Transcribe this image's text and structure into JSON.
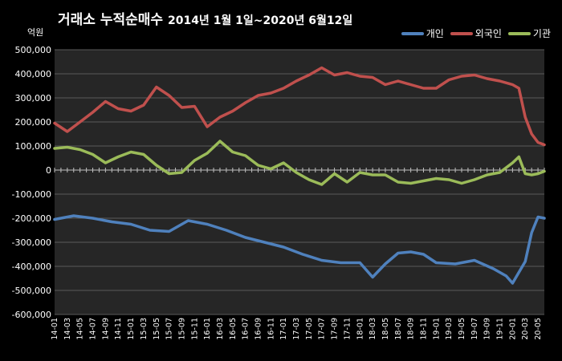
{
  "chart_data": {
    "type": "line",
    "title": "거래소 누적순매수",
    "subtitle": "2014년 1월 1일~2020년 6월12일",
    "unit_label": "억원",
    "ylim": [
      -600000,
      500000
    ],
    "y_ticks": [
      500000,
      400000,
      300000,
      200000,
      100000,
      0,
      -100000,
      -200000,
      -300000,
      -400000,
      -500000,
      -600000
    ],
    "y_tick_labels": [
      "500,000",
      "400,000",
      "300,000",
      "200,000",
      "100,000",
      "0",
      "-100,000",
      "-200,000",
      "-300,000",
      "-400,000",
      "-500,000",
      "-600,000"
    ],
    "x_start": "2014-01",
    "x_end": "2020-06",
    "x_tick_labels": [
      "14-01",
      "14-03",
      "14-05",
      "14-07",
      "14-09",
      "14-11",
      "15-01",
      "15-03",
      "15-05",
      "15-07",
      "15-09",
      "15-11",
      "16-01",
      "16-03",
      "16-05",
      "16-07",
      "16-09",
      "16-11",
      "17-01",
      "17-03",
      "17-05",
      "17-07",
      "17-09",
      "17-11",
      "18-01",
      "18-03",
      "18-05",
      "18-07",
      "18-09",
      "18-11",
      "19-01",
      "19-03",
      "19-05",
      "19-07",
      "19-09",
      "19-11",
      "20-01",
      "20-03",
      "20-05"
    ],
    "legend_position": "top-right",
    "grid": true,
    "series": [
      {
        "name": "개인",
        "color": "#4F81BD",
        "x": [
          "2014-01",
          "2014-04",
          "2014-07",
          "2014-10",
          "2015-01",
          "2015-04",
          "2015-07",
          "2015-10",
          "2016-01",
          "2016-04",
          "2016-07",
          "2016-10",
          "2017-01",
          "2017-04",
          "2017-07",
          "2017-10",
          "2018-01",
          "2018-03",
          "2018-05",
          "2018-07",
          "2018-09",
          "2018-11",
          "2019-01",
          "2019-04",
          "2019-07",
          "2019-10",
          "2019-12",
          "2020-01",
          "2020-03",
          "2020-04",
          "2020-05",
          "2020-06"
        ],
        "values": [
          -205000,
          -190000,
          -200000,
          -215000,
          -225000,
          -250000,
          -255000,
          -210000,
          -225000,
          -250000,
          -280000,
          -300000,
          -320000,
          -350000,
          -375000,
          -385000,
          -385000,
          -445000,
          -390000,
          -345000,
          -340000,
          -350000,
          -385000,
          -390000,
          -375000,
          -410000,
          -440000,
          -470000,
          -380000,
          -260000,
          -195000,
          -200000
        ]
      },
      {
        "name": "외국인",
        "color": "#C0504D",
        "x": [
          "2014-01",
          "2014-03",
          "2014-05",
          "2014-07",
          "2014-09",
          "2014-11",
          "2015-01",
          "2015-03",
          "2015-05",
          "2015-07",
          "2015-09",
          "2015-11",
          "2016-01",
          "2016-03",
          "2016-05",
          "2016-07",
          "2016-09",
          "2016-11",
          "2017-01",
          "2017-03",
          "2017-05",
          "2017-07",
          "2017-09",
          "2017-11",
          "2018-01",
          "2018-03",
          "2018-05",
          "2018-07",
          "2018-09",
          "2018-11",
          "2019-01",
          "2019-03",
          "2019-05",
          "2019-07",
          "2019-09",
          "2019-11",
          "2020-01",
          "2020-02",
          "2020-03",
          "2020-04",
          "2020-05",
          "2020-06"
        ],
        "values": [
          195000,
          160000,
          200000,
          240000,
          285000,
          255000,
          245000,
          270000,
          345000,
          310000,
          260000,
          265000,
          180000,
          220000,
          245000,
          280000,
          310000,
          320000,
          340000,
          370000,
          395000,
          425000,
          395000,
          405000,
          390000,
          385000,
          355000,
          370000,
          355000,
          340000,
          340000,
          375000,
          390000,
          395000,
          380000,
          370000,
          355000,
          340000,
          220000,
          150000,
          115000,
          105000
        ]
      },
      {
        "name": "기관",
        "color": "#9BBB59",
        "x": [
          "2014-01",
          "2014-03",
          "2014-05",
          "2014-07",
          "2014-09",
          "2014-11",
          "2015-01",
          "2015-03",
          "2015-05",
          "2015-07",
          "2015-09",
          "2015-11",
          "2016-01",
          "2016-03",
          "2016-05",
          "2016-07",
          "2016-09",
          "2016-11",
          "2017-01",
          "2017-03",
          "2017-05",
          "2017-07",
          "2017-09",
          "2017-11",
          "2018-01",
          "2018-03",
          "2018-05",
          "2018-07",
          "2018-09",
          "2018-11",
          "2019-01",
          "2019-03",
          "2019-05",
          "2019-07",
          "2019-09",
          "2019-11",
          "2020-01",
          "2020-02",
          "2020-03",
          "2020-04",
          "2020-05",
          "2020-06"
        ],
        "values": [
          90000,
          95000,
          85000,
          65000,
          30000,
          55000,
          75000,
          65000,
          20000,
          -15000,
          -10000,
          40000,
          70000,
          120000,
          75000,
          60000,
          20000,
          5000,
          30000,
          -10000,
          -40000,
          -60000,
          -15000,
          -50000,
          -10000,
          -20000,
          -20000,
          -50000,
          -55000,
          -45000,
          -35000,
          -40000,
          -55000,
          -40000,
          -20000,
          -10000,
          30000,
          55000,
          -15000,
          -20000,
          -15000,
          -5000
        ]
      }
    ]
  }
}
